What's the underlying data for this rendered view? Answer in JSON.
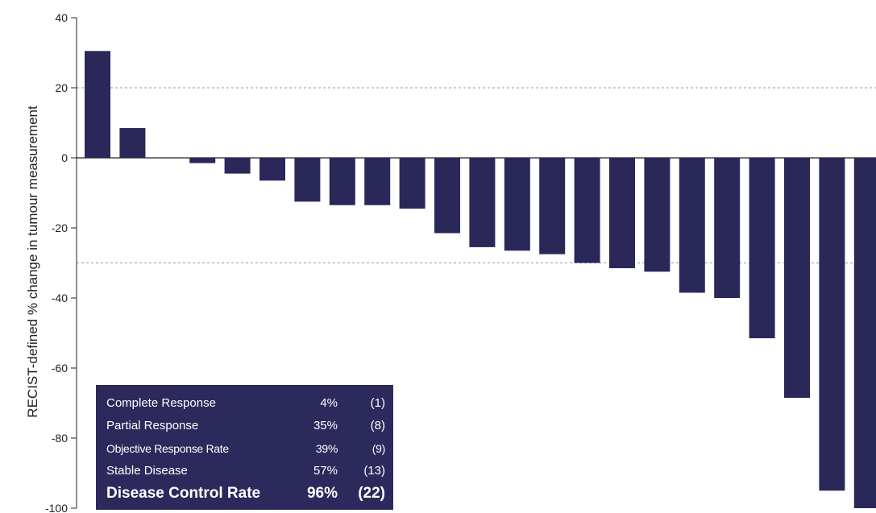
{
  "chart_data": {
    "type": "bar",
    "ylabel": "RECIST-defined % change in tumour measurement",
    "xlabel": "",
    "ylim": [
      -100,
      40
    ],
    "yticks": [
      40,
      20,
      0,
      -20,
      -40,
      -60,
      -80,
      -100
    ],
    "reference_lines": [
      20,
      -30
    ],
    "bar_color": "#2a2859",
    "values": [
      30.5,
      8.5,
      0,
      -1.5,
      -4.5,
      -6.5,
      -12.5,
      -13.5,
      -13.5,
      -14.5,
      -21.5,
      -25.5,
      -26.5,
      -27.5,
      -30.0,
      -31.5,
      -32.5,
      -38.5,
      -40.0,
      -51.5,
      -68.5,
      -95.0,
      -100.0
    ]
  },
  "summary": {
    "background": "#2c2a5c",
    "rows": [
      {
        "label": "Complete Response",
        "pct": "4%",
        "n": "(1)"
      },
      {
        "label": "Partial Response",
        "pct": "35%",
        "n": "(8)"
      },
      {
        "label": "Objective Response Rate",
        "pct": "39%",
        "n": "(9)"
      },
      {
        "label": "Stable Disease",
        "pct": "57%",
        "n": "(13)"
      },
      {
        "label": "Disease Control Rate",
        "pct": "96%",
        "n": "(22)"
      }
    ]
  }
}
